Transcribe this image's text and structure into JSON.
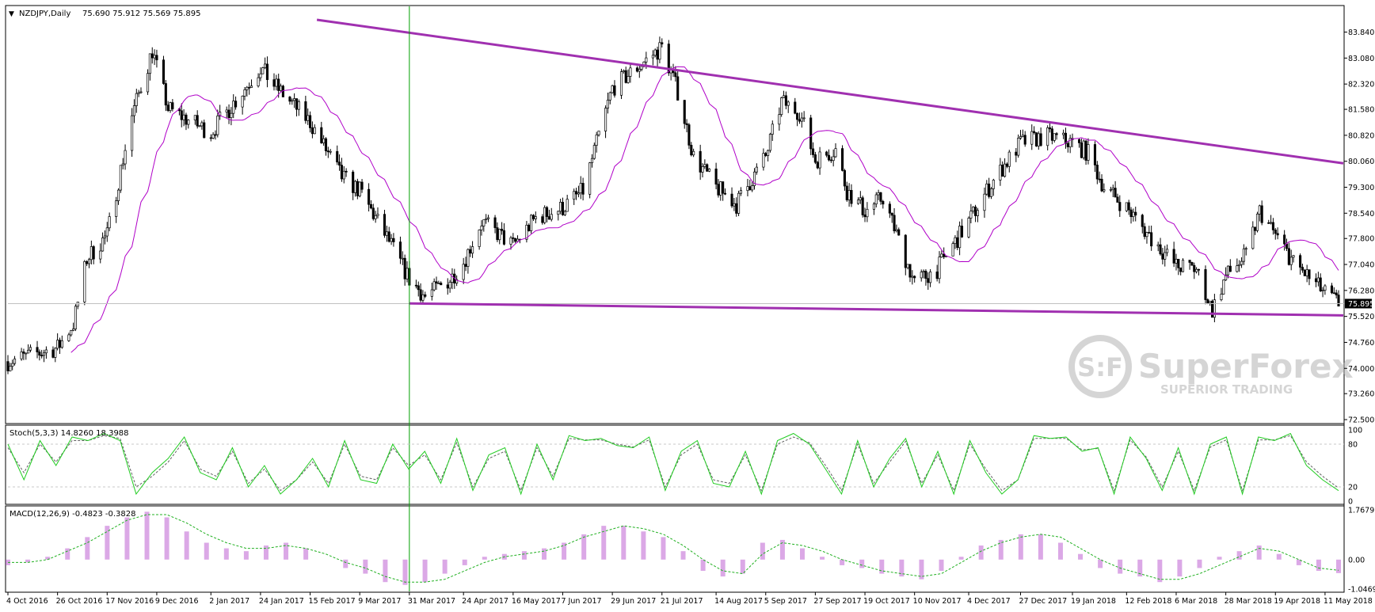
{
  "colors": {
    "background": "#ffffff",
    "frame": "#000000",
    "grid": "#c8c8c8",
    "candle": "#000000",
    "ma": "#b000c8",
    "trendline": "#a030b0",
    "vline": "#00a000",
    "stoch_main": "#22cc22",
    "stoch_signal": "#606060",
    "macd_hist": "#b040c8",
    "macd_signal": "#20b020",
    "price_tag_bg": "#000000",
    "price_tag_text": "#ffffff",
    "watermark": "#b4b4b4"
  },
  "header": {
    "marker": "▼",
    "symbol_label": "NZDJPY,Daily",
    "ohlc": "75.690 75.912 75.569 75.895"
  },
  "watermark": {
    "logo_text": "S:F",
    "brand": "SuperForex",
    "tagline": "SUPERIOR TRADING"
  },
  "chart_data": [
    {
      "type": "candlestick",
      "symbol": "NZDJPY",
      "timeframe": "Daily",
      "last_price_label": "75.895",
      "ylim": [
        72.5,
        84.2
      ],
      "y_ticks": [
        "83.840",
        "83.080",
        "82.320",
        "81.580",
        "80.820",
        "80.060",
        "79.300",
        "78.540",
        "77.800",
        "77.040",
        "76.280",
        "75.520",
        "74.760",
        "74.000",
        "73.260",
        "72.500"
      ],
      "x_ticks": [
        "4 Oct 2016",
        "26 Oct 2016",
        "17 Nov 2016",
        "9 Dec 2016",
        "2 Jan 2017",
        "24 Jan 2017",
        "15 Feb 2017",
        "9 Mar 2017",
        "31 Mar 2017",
        "24 Apr 2017",
        "16 May 2017",
        "7 Jun 2017",
        "29 Jun 2017",
        "21 Jul 2017",
        "14 Aug 2017",
        "5 Sep 2017",
        "27 Sep 2017",
        "19 Oct 2017",
        "10 Nov 2017",
        "4 Dec 2017",
        "27 Dec 2017",
        "19 Jan 2018",
        "12 Feb 2018",
        "6 Mar 2018",
        "28 Mar 2018",
        "19 Apr 2018",
        "11 May 2018"
      ],
      "close_path": [
        [
          "4 Oct 2016",
          74.2
        ],
        [
          "26 Oct 2016",
          74.6
        ],
        [
          "2 Nov 2016",
          75.3
        ],
        [
          "8 Nov 2016",
          77.2
        ],
        [
          "17 Nov 2016",
          77.9
        ],
        [
          "28 Nov 2016",
          81.4
        ],
        [
          "7 Dec 2016",
          83.3
        ],
        [
          "14 Dec 2016",
          81.6
        ],
        [
          "2 Jan 2017",
          80.9
        ],
        [
          "24 Jan 2017",
          82.8
        ],
        [
          "30 Jan 2017",
          82.3
        ],
        [
          "15 Feb 2017",
          81.2
        ],
        [
          "1 Mar 2017",
          79.6
        ],
        [
          "9 Mar 2017",
          79.2
        ],
        [
          "23 Mar 2017",
          77.6
        ],
        [
          "31 Mar 2017",
          76.6
        ],
        [
          "7 Apr 2017",
          76.1
        ],
        [
          "18 Apr 2017",
          76.6
        ],
        [
          "24 Apr 2017",
          77.1
        ],
        [
          "2 May 2017",
          78.3
        ],
        [
          "10 May 2017",
          77.9
        ],
        [
          "16 May 2017",
          77.6
        ],
        [
          "26 May 2017",
          78.4
        ],
        [
          "7 Jun 2017",
          78.7
        ],
        [
          "16 Jun 2017",
          79.2
        ],
        [
          "29 Jun 2017",
          82.2
        ],
        [
          "10 Jul 2017",
          82.8
        ],
        [
          "21 Jul 2017",
          83.4
        ],
        [
          "28 Jul 2017",
          82.1
        ],
        [
          "4 Aug 2017",
          80.2
        ],
        [
          "14 Aug 2017",
          79.3
        ],
        [
          "23 Aug 2017",
          78.8
        ],
        [
          "5 Sep 2017",
          80.2
        ],
        [
          "12 Sep 2017",
          81.8
        ],
        [
          "20 Sep 2017",
          81.5
        ],
        [
          "27 Sep 2017",
          80.1
        ],
        [
          "6 Oct 2017",
          80.4
        ],
        [
          "11 Oct 2017",
          79.2
        ],
        [
          "19 Oct 2017",
          78.6
        ],
        [
          "27 Oct 2017",
          79.0
        ],
        [
          "10 Nov 2017",
          76.5
        ],
        [
          "20 Nov 2017",
          76.9
        ],
        [
          "4 Dec 2017",
          78.3
        ],
        [
          "15 Dec 2017",
          79.5
        ],
        [
          "27 Dec 2017",
          80.6
        ],
        [
          "8 Jan 2018",
          80.8
        ],
        [
          "19 Jan 2018",
          80.6
        ],
        [
          "26 Jan 2018",
          80.3
        ],
        [
          "2 Feb 2018",
          79.3
        ],
        [
          "12 Feb 2018",
          78.7
        ],
        [
          "23 Feb 2018",
          77.8
        ],
        [
          "6 Mar 2018",
          77.0
        ],
        [
          "15 Mar 2018",
          76.9
        ],
        [
          "22 Mar 2018",
          75.7
        ],
        [
          "28 Mar 2018",
          76.7
        ],
        [
          "6 Apr 2018",
          77.3
        ],
        [
          "12 Apr 2018",
          78.6
        ],
        [
          "19 Apr 2018",
          77.9
        ],
        [
          "27 Apr 2018",
          77.1
        ],
        [
          "11 May 2018",
          76.2
        ],
        [
          "17 May 2018",
          75.9
        ]
      ]
    },
    {
      "type": "line",
      "title": "Stoch(5,3,3) 14.8260 18.3988",
      "ylim": [
        0,
        100
      ],
      "y_ticks": [
        "100",
        "80",
        "20",
        "0"
      ],
      "levels": [
        80,
        20
      ],
      "series": [
        {
          "values": [
            80,
            30,
            85,
            50,
            90,
            85,
            95,
            85,
            10,
            40,
            60,
            90,
            40,
            30,
            75,
            20,
            50,
            10,
            30,
            60,
            20,
            85,
            30,
            25,
            80,
            45,
            70,
            25,
            88,
            15,
            65,
            75,
            10,
            80,
            30,
            92,
            85,
            88,
            78,
            75,
            90,
            15,
            70,
            85,
            25,
            20,
            70,
            10,
            85,
            95,
            80,
            45,
            10,
            85,
            20,
            60,
            88,
            20,
            70,
            10,
            85,
            40,
            10,
            30,
            92,
            88,
            90,
            70,
            75,
            10,
            90,
            60,
            15,
            75,
            10,
            80,
            90,
            10,
            90,
            85,
            95,
            50,
            30,
            14.8
          ]
        },
        {
          "values": [
            75,
            40,
            80,
            55,
            85,
            85,
            92,
            88,
            20,
            35,
            55,
            85,
            45,
            35,
            70,
            25,
            45,
            15,
            30,
            55,
            25,
            80,
            35,
            30,
            75,
            50,
            65,
            30,
            82,
            20,
            60,
            70,
            15,
            75,
            35,
            88,
            86,
            86,
            80,
            76,
            86,
            20,
            65,
            80,
            30,
            25,
            65,
            15,
            80,
            90,
            82,
            50,
            15,
            80,
            25,
            55,
            84,
            25,
            65,
            15,
            80,
            45,
            15,
            30,
            88,
            88,
            88,
            72,
            74,
            15,
            86,
            62,
            20,
            70,
            15,
            76,
            86,
            15,
            86,
            86,
            92,
            55,
            35,
            18.4
          ]
        }
      ]
    },
    {
      "type": "bar",
      "title": "MACD(12,26,9) -0.4823 -0.3828",
      "ylim": [
        -1.0469,
        1.7679
      ],
      "y_ticks": [
        "1.7679",
        "0.00",
        "-1.0469"
      ],
      "series": [
        {
          "values": [
            -0.2,
            -0.1,
            0.1,
            0.4,
            0.8,
            1.2,
            1.5,
            1.7,
            1.5,
            1.0,
            0.6,
            0.4,
            0.3,
            0.5,
            0.6,
            0.4,
            0.0,
            -0.3,
            -0.5,
            -0.8,
            -0.9,
            -0.8,
            -0.5,
            -0.2,
            0.1,
            0.2,
            0.3,
            0.4,
            0.6,
            0.9,
            1.2,
            1.2,
            1.0,
            0.8,
            0.3,
            -0.4,
            -0.6,
            -0.5,
            0.6,
            0.7,
            0.4,
            0.1,
            -0.2,
            -0.3,
            -0.5,
            -0.6,
            -0.7,
            -0.4,
            0.1,
            0.5,
            0.7,
            0.9,
            0.9,
            0.6,
            0.2,
            -0.3,
            -0.5,
            -0.6,
            -0.8,
            -0.6,
            -0.3,
            0.1,
            0.3,
            0.5,
            0.2,
            -0.2,
            -0.4,
            -0.48
          ]
        },
        {
          "values": [
            -0.1,
            -0.1,
            0.0,
            0.3,
            0.6,
            1.0,
            1.4,
            1.6,
            1.6,
            1.3,
            0.9,
            0.6,
            0.4,
            0.4,
            0.5,
            0.4,
            0.2,
            -0.1,
            -0.3,
            -0.6,
            -0.8,
            -0.8,
            -0.7,
            -0.4,
            -0.1,
            0.1,
            0.2,
            0.3,
            0.5,
            0.8,
            1.0,
            1.2,
            1.1,
            0.9,
            0.5,
            0.0,
            -0.4,
            -0.5,
            0.2,
            0.6,
            0.5,
            0.3,
            0.0,
            -0.2,
            -0.4,
            -0.5,
            -0.6,
            -0.5,
            -0.1,
            0.3,
            0.6,
            0.8,
            0.9,
            0.8,
            0.4,
            0.0,
            -0.3,
            -0.5,
            -0.7,
            -0.7,
            -0.5,
            -0.2,
            0.1,
            0.4,
            0.3,
            0.0,
            -0.3,
            -0.38
          ]
        }
      ]
    }
  ]
}
